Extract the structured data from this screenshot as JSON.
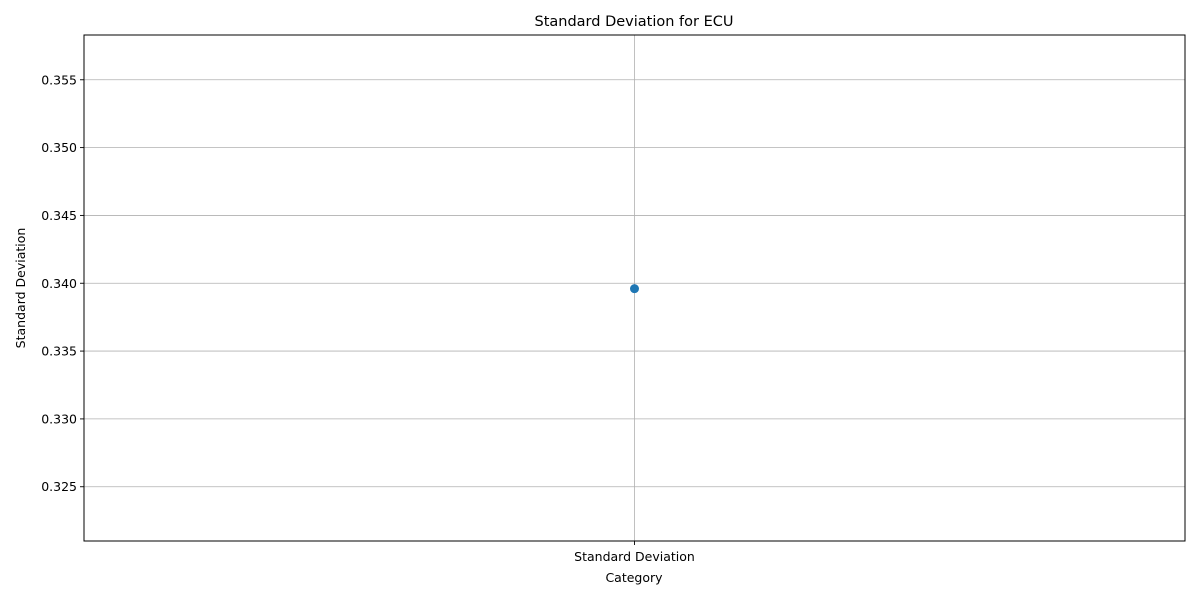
{
  "chart_data": {
    "type": "line",
    "title": "Standard Deviation for ECU",
    "xlabel": "Category",
    "ylabel": "Standard Deviation",
    "categories": [
      "Standard Deviation"
    ],
    "series": [
      {
        "values": [
          0.3396
        ]
      }
    ],
    "ylim": [
      0.321,
      0.3583
    ],
    "yticks": [
      0.325,
      0.33,
      0.335,
      0.34,
      0.345,
      0.35,
      0.355
    ],
    "ytick_labels": [
      "0.325",
      "0.330",
      "0.335",
      "0.340",
      "0.345",
      "0.350",
      "0.355"
    ],
    "grid": true,
    "marker": "circle",
    "color": "#1f77b4"
  }
}
